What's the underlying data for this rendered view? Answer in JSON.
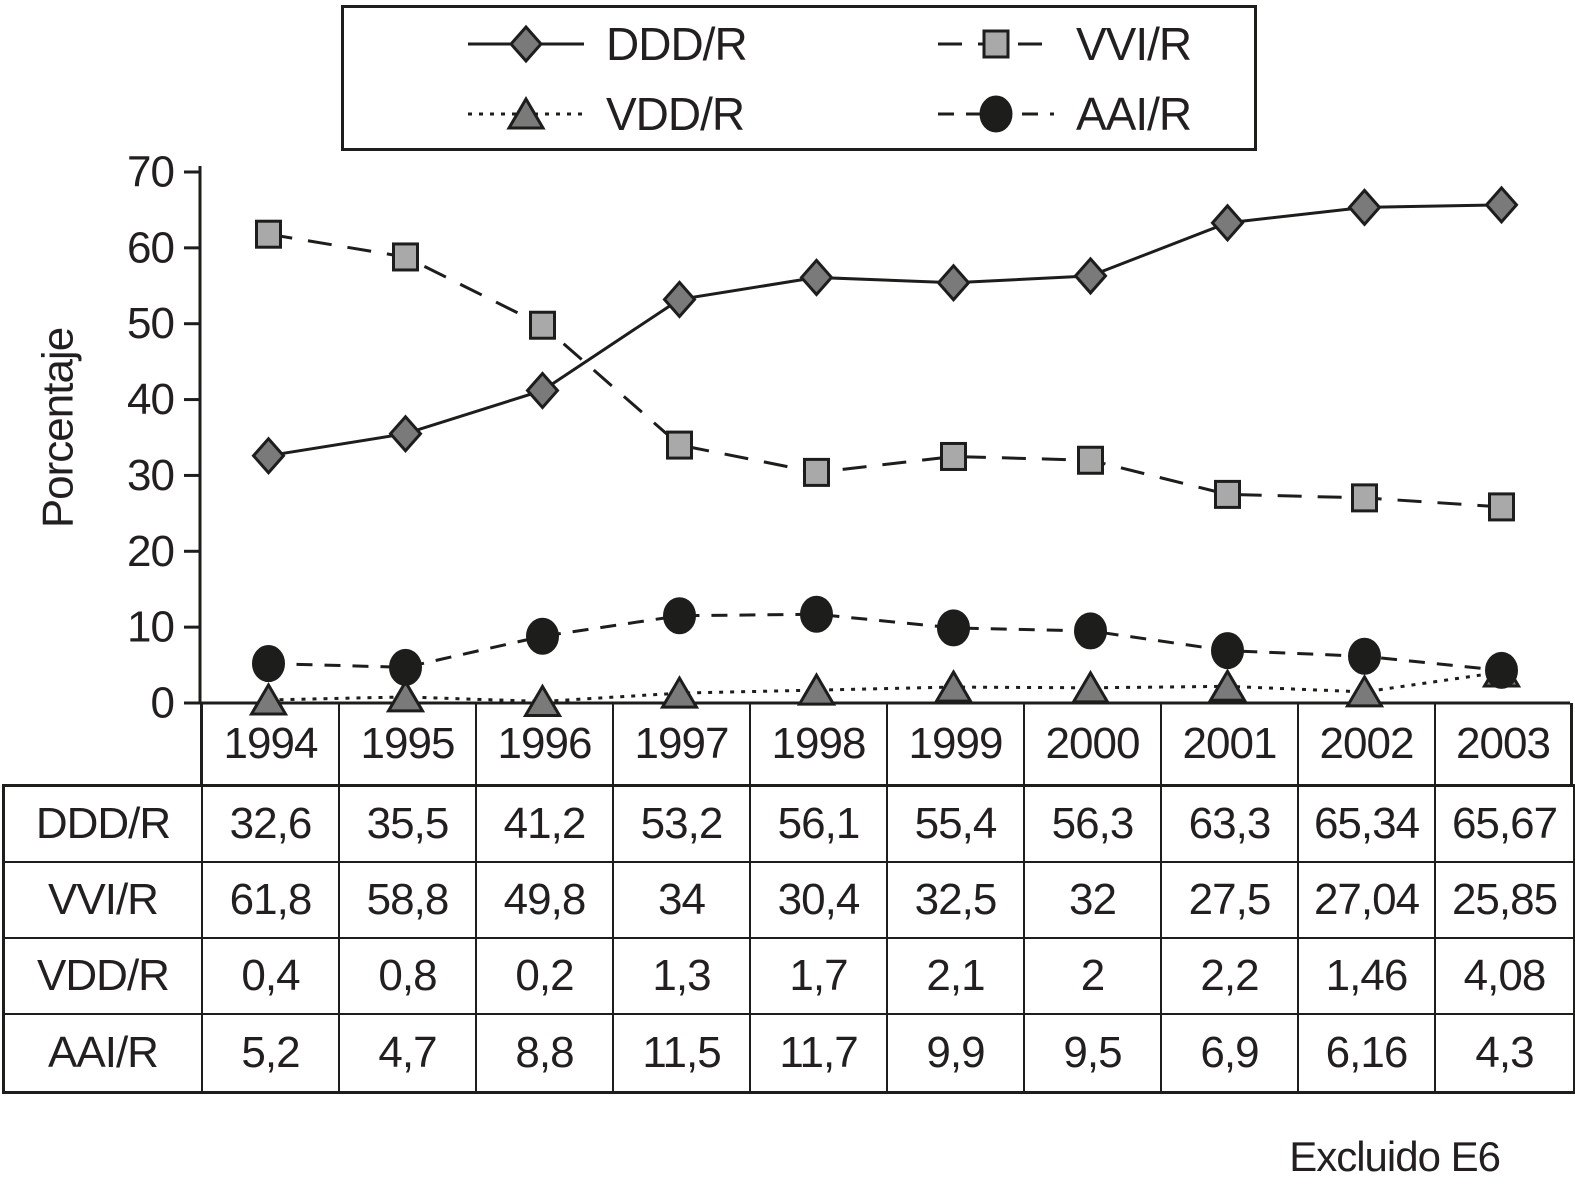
{
  "figure": {
    "footnote": "Excluido E6",
    "text_color": "#231f20",
    "line_color": "#1d1d1b",
    "background": "#ffffff"
  },
  "chart_data": {
    "type": "line",
    "title": "",
    "xlabel": "",
    "ylabel": "Porcentaje",
    "ylim": [
      0,
      70
    ],
    "yticks": [
      0,
      10,
      20,
      30,
      40,
      50,
      60,
      70
    ],
    "grid": false,
    "legend_position": "top-center",
    "legend_columns": 2,
    "decimal_separator": ",",
    "categories": [
      "1994",
      "1995",
      "1996",
      "1997",
      "1998",
      "1999",
      "2000",
      "2001",
      "2002",
      "2003"
    ],
    "series": [
      {
        "name": "DDD/R",
        "marker": "diamond",
        "marker_fill": "#7a7a7a",
        "line_dash": "solid",
        "values": [
          32.6,
          35.5,
          41.2,
          53.2,
          56.1,
          55.4,
          56.3,
          63.3,
          65.34,
          65.67
        ]
      },
      {
        "name": "VVI/R",
        "marker": "square",
        "marker_fill": "#a9a9a9",
        "line_dash": "dashed",
        "values": [
          61.8,
          58.8,
          49.8,
          34,
          30.4,
          32.5,
          32,
          27.5,
          27.04,
          25.85
        ]
      },
      {
        "name": "VDD/R",
        "marker": "triangle",
        "marker_fill": "#7a7a7a",
        "line_dash": "dotted",
        "values": [
          0.4,
          0.8,
          0.2,
          1.3,
          1.7,
          2.1,
          2,
          2.2,
          1.46,
          4.08
        ]
      },
      {
        "name": "AAI/R",
        "marker": "circle",
        "marker_fill": "#1d1d1b",
        "line_dash": "dashed-short",
        "values": [
          5.2,
          4.7,
          8.8,
          11.5,
          11.7,
          9.9,
          9.5,
          6.9,
          6.16,
          4.3
        ]
      }
    ]
  }
}
